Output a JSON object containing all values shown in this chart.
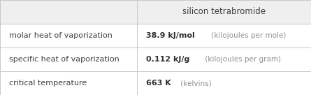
{
  "title": "silicon tetrabromide",
  "rows": [
    {
      "label": "molar heat of vaporization",
      "value_bold": "38.9 kJ/mol",
      "value_light": " (kilojoules per mole)"
    },
    {
      "label": "specific heat of vaporization",
      "value_bold": "0.112 kJ/g",
      "value_light": " (kilojoules per gram)"
    },
    {
      "label": "critical temperature",
      "value_bold": "663 K",
      "value_light": " (kelvins)"
    }
  ],
  "background_color": "#ffffff",
  "border_color": "#c8c8c8",
  "text_color_label": "#404040",
  "text_color_value_bold": "#303030",
  "text_color_value_light": "#909090",
  "header_bg": "#efefef",
  "row_bg": "#ffffff",
  "col_split": 0.44,
  "font_size_header": 8.5,
  "font_size_label": 8,
  "font_size_value_bold": 8,
  "font_size_value_light": 7.5
}
